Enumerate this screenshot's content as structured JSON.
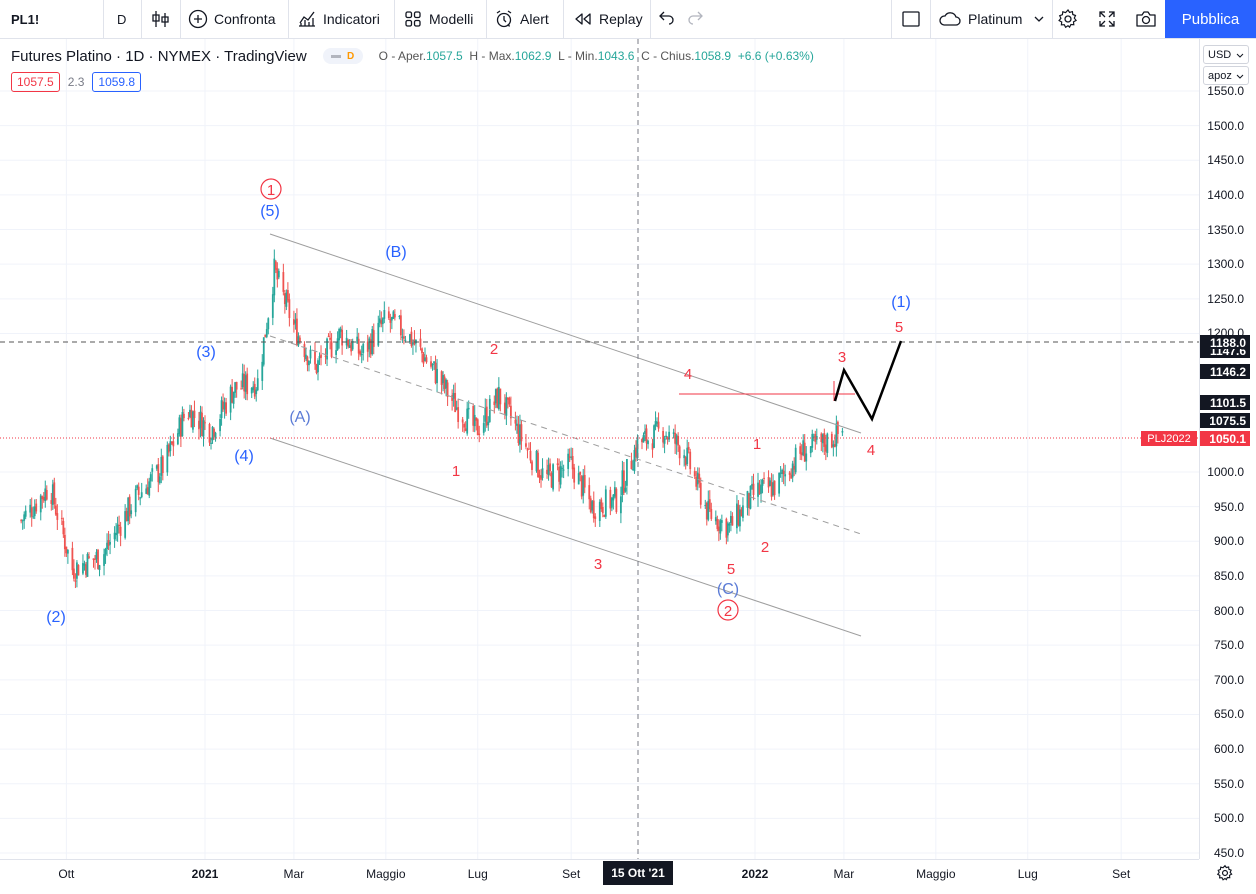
{
  "toolbar": {
    "symbol": "PL1!",
    "interval": "D",
    "compare_label": "Confronta",
    "indicators_label": "Indicatori",
    "templates_label": "Modelli",
    "alert_label": "Alert",
    "replay_label": "Replay",
    "symbol_name_label": "Platinum",
    "publish_label": "Pubblica"
  },
  "legend": {
    "title": "Futures Platino · 1D · NYMEX · TradingView",
    "pill_letter": "D",
    "o_label": "O - Aper.",
    "o_value": "1057.5",
    "h_label": "H - Max.",
    "h_value": "1062.9",
    "l_label": "L - Min.",
    "l_value": "1043.6",
    "c_label": "C - Chius.",
    "c_value": "1058.9",
    "change": "+6.6 (+0.63%)",
    "bid": "1057.5",
    "spread": "2.3",
    "ask": "1059.8"
  },
  "price_axis": {
    "currency": "USD",
    "scale_mode": "apoz",
    "ticks": [
      "1550.0",
      "1500.0",
      "1450.0",
      "1400.0",
      "1350.0",
      "1300.0",
      "1250.0",
      "1200.0",
      "1000.0",
      "950.0",
      "900.0",
      "850.0",
      "800.0",
      "750.0",
      "700.0",
      "650.0",
      "600.0",
      "550.0",
      "500.0",
      "450.0"
    ],
    "labels": [
      "1188.0",
      "1147.6",
      "1146.2",
      "1101.5",
      "1075.5",
      "1050.1"
    ],
    "plj_tag": "PLJ2022"
  },
  "time_axis": {
    "ticks": [
      "Ott",
      "2021",
      "Mar",
      "Maggio",
      "Lug",
      "Set",
      "2022",
      "Mar",
      "Maggio",
      "Lug",
      "Set"
    ],
    "crosshair": "15 Ott '21"
  },
  "waves": {
    "circle_1": "1",
    "circle_2": "2",
    "p5": "(5)",
    "pB": "(B)",
    "p3": "(3)",
    "pA": "(A)",
    "p4": "(4)",
    "p2": "(2)",
    "pC": "(C)",
    "p1": "(1)",
    "r2a": "2",
    "r1a": "1",
    "r3a": "3",
    "r4a": "4",
    "r5a": "5",
    "r1b": "1",
    "r2b": "2",
    "r3b": "3",
    "r4b": "4",
    "r5b": "5"
  },
  "colors": {
    "up": "#26a69a",
    "down": "#ef5350",
    "wave_blue": "#2962ff",
    "wave_red": "#f23645",
    "accent": "#2962ff"
  },
  "chart_data": {
    "type": "candlestick",
    "instrument": "Futures Platino",
    "interval": "1D",
    "ylim": [
      450,
      1550
    ],
    "close_path": [
      {
        "d": "2020-09-01",
        "v": 930
      },
      {
        "d": "2020-09-20",
        "v": 980
      },
      {
        "d": "2020-10-05",
        "v": 860
      },
      {
        "d": "2020-10-25",
        "v": 880
      },
      {
        "d": "2020-11-15",
        "v": 960
      },
      {
        "d": "2020-12-05",
        "v": 1010
      },
      {
        "d": "2020-12-20",
        "v": 1090
      },
      {
        "d": "2021-01-05",
        "v": 1060
      },
      {
        "d": "2021-01-20",
        "v": 1120
      },
      {
        "d": "2021-02-05",
        "v": 1130
      },
      {
        "d": "2021-02-16",
        "v": 1290
      },
      {
        "d": "2021-03-01",
        "v": 1210
      },
      {
        "d": "2021-03-15",
        "v": 1150
      },
      {
        "d": "2021-04-01",
        "v": 1200
      },
      {
        "d": "2021-04-15",
        "v": 1170
      },
      {
        "d": "2021-05-01",
        "v": 1220
      },
      {
        "d": "2021-05-15",
        "v": 1200
      },
      {
        "d": "2021-06-01",
        "v": 1150
      },
      {
        "d": "2021-06-15",
        "v": 1100
      },
      {
        "d": "2021-06-30",
        "v": 1060
      },
      {
        "d": "2021-07-15",
        "v": 1110
      },
      {
        "d": "2021-08-01",
        "v": 1040
      },
      {
        "d": "2021-08-15",
        "v": 990
      },
      {
        "d": "2021-09-01",
        "v": 1010
      },
      {
        "d": "2021-09-15",
        "v": 950
      },
      {
        "d": "2021-10-01",
        "v": 960
      },
      {
        "d": "2021-10-15",
        "v": 1040
      },
      {
        "d": "2021-11-01",
        "v": 1060
      },
      {
        "d": "2021-11-15",
        "v": 1030
      },
      {
        "d": "2021-12-01",
        "v": 940
      },
      {
        "d": "2021-12-15",
        "v": 920
      },
      {
        "d": "2022-01-01",
        "v": 970
      },
      {
        "d": "2022-01-15",
        "v": 980
      },
      {
        "d": "2022-02-01",
        "v": 1030
      },
      {
        "d": "2022-02-15",
        "v": 1040
      },
      {
        "d": "2022-02-28",
        "v": 1058.9
      }
    ]
  }
}
